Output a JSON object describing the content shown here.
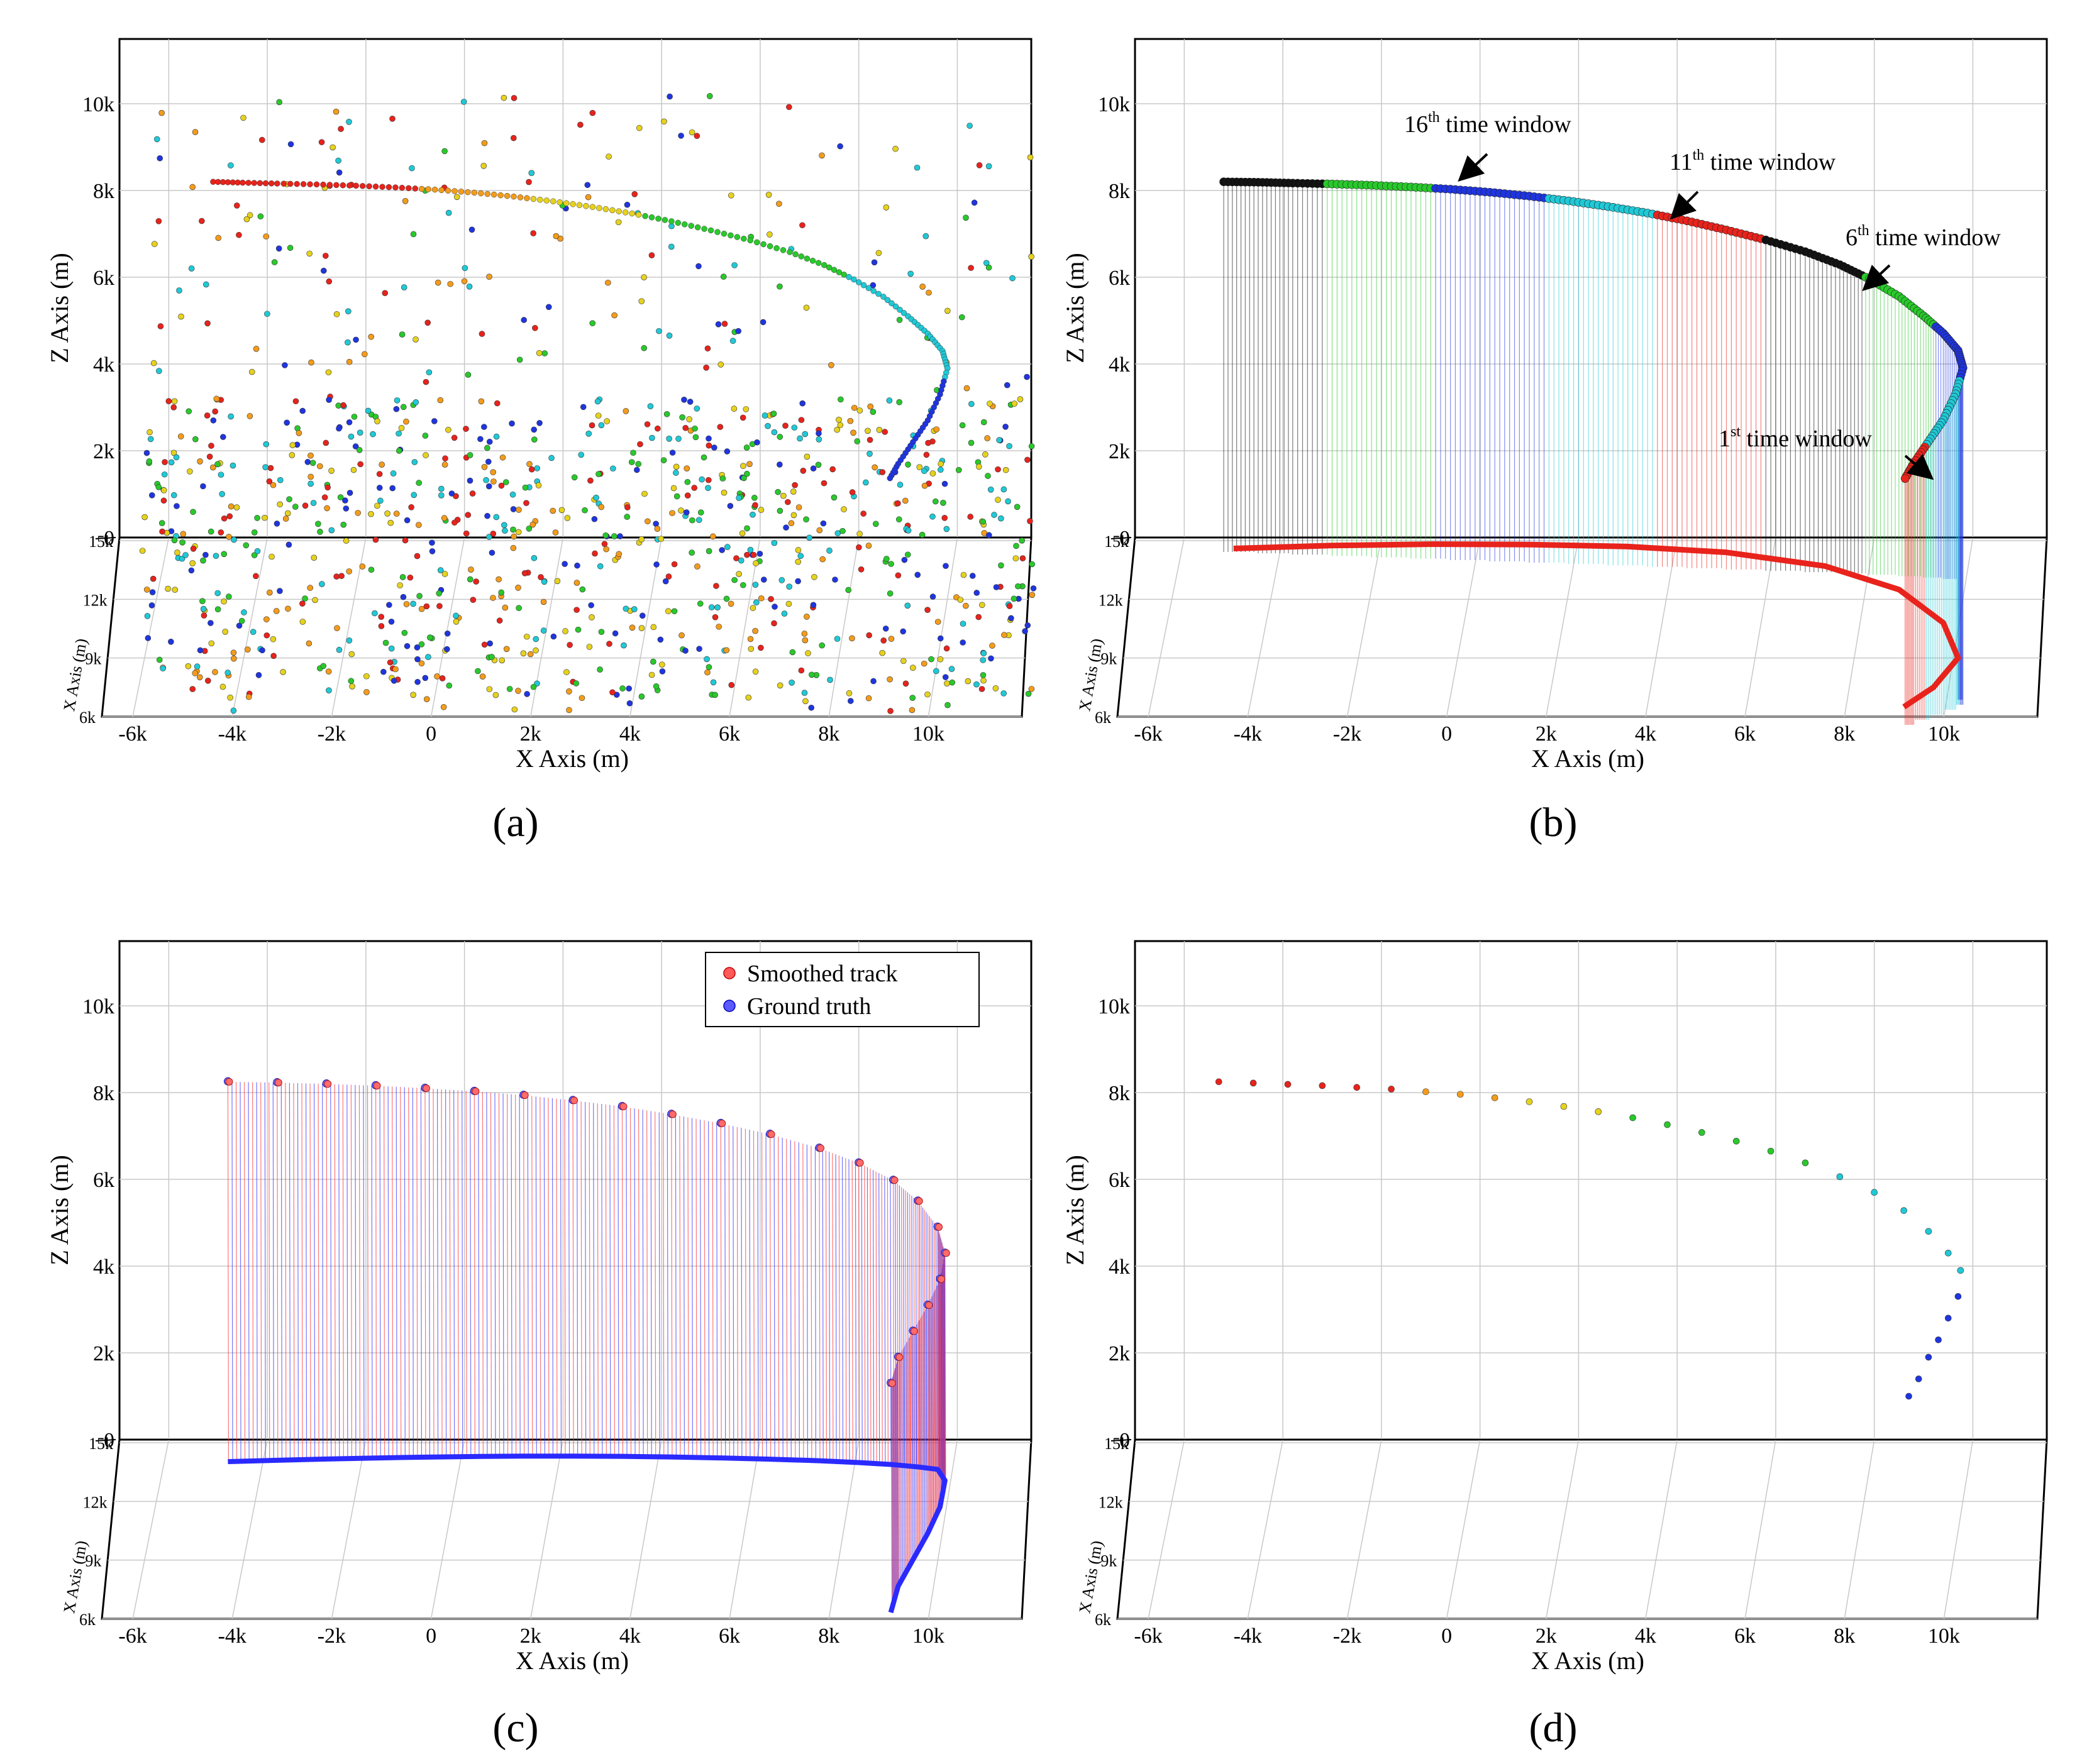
{
  "figure": {
    "panels": [
      {
        "caption": "(a)"
      },
      {
        "caption": "(b)"
      },
      {
        "caption": "(c)"
      },
      {
        "caption": "(d)"
      }
    ]
  },
  "axes": {
    "z_label": "Z Axis (m)",
    "x_label": "X Axis (m)",
    "depth_label": "X Axis (m)",
    "z_ticks": [
      "0",
      "2k",
      "4k",
      "6k",
      "8k",
      "10k"
    ],
    "x_ticks": [
      "-6k",
      "-4k",
      "-2k",
      "0",
      "2k",
      "4k",
      "6k",
      "8k",
      "10k"
    ],
    "depth_ticks": [
      "6k",
      "9k",
      "12k",
      "15k"
    ]
  },
  "annotations": {
    "w16": {
      "base": "16",
      "sup": "th",
      "rest": " time window"
    },
    "w11": {
      "base": "11",
      "sup": "th",
      "rest": " time window"
    },
    "w6": {
      "base": "6",
      "sup": "th",
      "rest": " time window"
    },
    "w1": {
      "base": "1",
      "sup": "st",
      "rest": " time window"
    }
  },
  "legend": {
    "smoothed": "Smoothed track",
    "truth": "Ground truth",
    "smoothed_color": "#ff4040",
    "truth_color": "#3b3bff"
  },
  "colors": {
    "red": "#e8231c",
    "orange": "#f39c1b",
    "yellow": "#e6d21c",
    "green": "#29c92b",
    "cyan": "#20c9d6",
    "blue": "#1f35e0",
    "black": "#111111"
  },
  "chart_data": [
    {
      "panel": "a",
      "type": "scatter",
      "title": "",
      "xlabel": "X Axis (m)",
      "ylabel": "Z Axis (m)",
      "zlabel": "X Axis (m)",
      "xlim": [
        -7000,
        11500
      ],
      "ylim": [
        0,
        11000
      ],
      "track": {
        "x": [
          -5100,
          -4500,
          -3800,
          -3000,
          -2200,
          -1400,
          -600,
          200,
          1000,
          1800,
          2600,
          3400,
          4200,
          5000,
          5800,
          6600,
          7300,
          7900,
          8500,
          9000,
          9400,
          9700,
          9800,
          9650,
          9400,
          9100,
          8800,
          8600
        ],
        "z": [
          8200,
          8180,
          8160,
          8140,
          8110,
          8070,
          8020,
          7950,
          7860,
          7750,
          7620,
          7470,
          7290,
          7080,
          6850,
          6580,
          6280,
          5950,
          5550,
          5100,
          4700,
          4300,
          3900,
          3300,
          2700,
          2200,
          1700,
          1300
        ]
      },
      "clutter": "approximately 2000 false-alarm measurements spread over the surveillance volume"
    },
    {
      "panel": "b",
      "type": "line",
      "title": "",
      "xlabel": "X Axis (m)",
      "ylabel": "Z Axis (m)",
      "zlabel": "X Axis (m)",
      "series": [
        {
          "name": "estimated track (colored by time window)",
          "x": [
            -5200,
            -4500,
            -3800,
            -3000,
            -2200,
            -1400,
            -600,
            200,
            1000,
            1800,
            2600,
            3400,
            4200,
            5000,
            5800,
            6600,
            7300,
            7900,
            8500,
            9000,
            9400,
            9700,
            9800,
            9650,
            9400,
            9100,
            8800,
            8600
          ],
          "z": [
            8200,
            8190,
            8170,
            8150,
            8120,
            8080,
            8030,
            7960,
            7870,
            7760,
            7630,
            7480,
            7300,
            7090,
            6860,
            6590,
            6290,
            5960,
            5560,
            5110,
            4710,
            4310,
            3910,
            3310,
            2710,
            2210,
            1710,
            1310
          ]
        },
        {
          "name": "ground projection",
          "x": [
            -5000,
            -3000,
            -1000,
            1000,
            3000,
            5000,
            7000,
            8500,
            9400,
            9700,
            9200,
            8600
          ],
          "depth": [
            14600,
            14750,
            14820,
            14800,
            14700,
            14400,
            13700,
            12500,
            10800,
            9000,
            7500,
            6500
          ]
        }
      ],
      "annotations": [
        "16th time window",
        "11th time window",
        "6th time window",
        "1st time window"
      ]
    },
    {
      "panel": "c",
      "type": "line",
      "title": "",
      "xlabel": "X Axis (m)",
      "ylabel": "Z Axis (m)",
      "zlabel": "X Axis (m)",
      "legend": "top-right",
      "series": [
        {
          "name": "Smoothed track",
          "x": [
            -4800,
            -3800,
            -2800,
            -1800,
            -800,
            200,
            1200,
            2200,
            3200,
            4200,
            5200,
            6200,
            7200,
            8000,
            8700,
            9200,
            9600,
            9750,
            9650,
            9400,
            9100,
            8800,
            8650
          ],
          "z": [
            8250,
            8230,
            8200,
            8160,
            8100,
            8030,
            7940,
            7820,
            7680,
            7500,
            7290,
            7040,
            6720,
            6380,
            5980,
            5500,
            4900,
            4300,
            3700,
            3100,
            2500,
            1900,
            1300
          ]
        },
        {
          "name": "Ground truth",
          "x": [
            -4800,
            -3800,
            -2800,
            -1800,
            -800,
            200,
            1200,
            2200,
            3200,
            4200,
            5200,
            6200,
            7200,
            8000,
            8700,
            9200,
            9600,
            9750,
            9650,
            9400,
            9100,
            8800,
            8650
          ],
          "z": [
            8260,
            8240,
            8210,
            8170,
            8110,
            8040,
            7950,
            7830,
            7690,
            7510,
            7300,
            7050,
            6730,
            6390,
            5990,
            5510,
            4910,
            4310,
            3710,
            3110,
            2510,
            1910,
            1310
          ]
        }
      ]
    },
    {
      "panel": "d",
      "type": "scatter",
      "title": "",
      "xlabel": "X Axis (m)",
      "ylabel": "Z Axis (m)",
      "zlabel": "X Axis (m)",
      "x": [
        -5300,
        -4600,
        -3900,
        -3200,
        -2500,
        -1800,
        -1100,
        -400,
        300,
        1000,
        1700,
        2400,
        3100,
        3800,
        4500,
        5200,
        5900,
        6600,
        7300,
        8000,
        8600,
        9100,
        9500,
        9750,
        9700,
        9500,
        9300,
        9100,
        8900,
        8700
      ],
      "z": [
        8250,
        8220,
        8190,
        8160,
        8120,
        8080,
        8020,
        7960,
        7880,
        7790,
        7680,
        7560,
        7420,
        7260,
        7080,
        6880,
        6650,
        6380,
        6060,
        5700,
        5280,
        4800,
        4300,
        3900,
        3300,
        2800,
        2300,
        1900,
        1400,
        1000
      ]
    }
  ]
}
